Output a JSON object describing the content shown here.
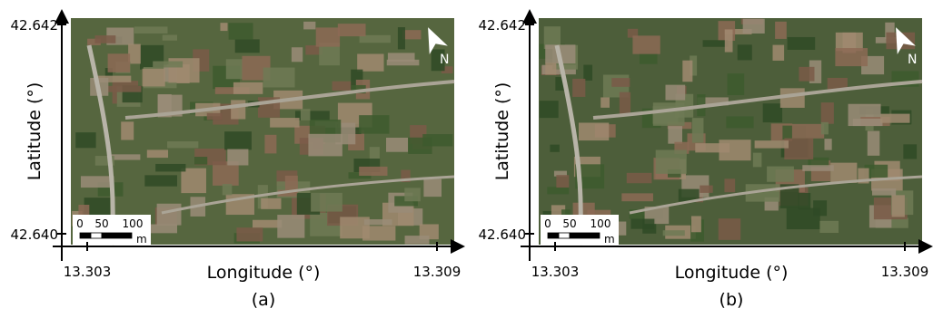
{
  "panels": [
    {
      "caption": "(a)",
      "x_label": "Longitude (°)",
      "y_label": "Latitude (°)",
      "x_ticks": [
        "13.303",
        "13.309"
      ],
      "y_ticks": [
        "42.642",
        "42.640"
      ],
      "scale_bar": {
        "labels": [
          "0",
          "50",
          "100"
        ],
        "unit": "m"
      },
      "north": "N"
    },
    {
      "caption": "(b)",
      "x_label": "Longitude (°)",
      "y_label": "Latitude (°)",
      "x_ticks": [
        "13.303",
        "13.309"
      ],
      "y_ticks": [
        "42.642",
        "42.640"
      ],
      "scale_bar": {
        "labels": [
          "0",
          "50",
          "100"
        ],
        "unit": "m"
      },
      "north": "N"
    }
  ]
}
